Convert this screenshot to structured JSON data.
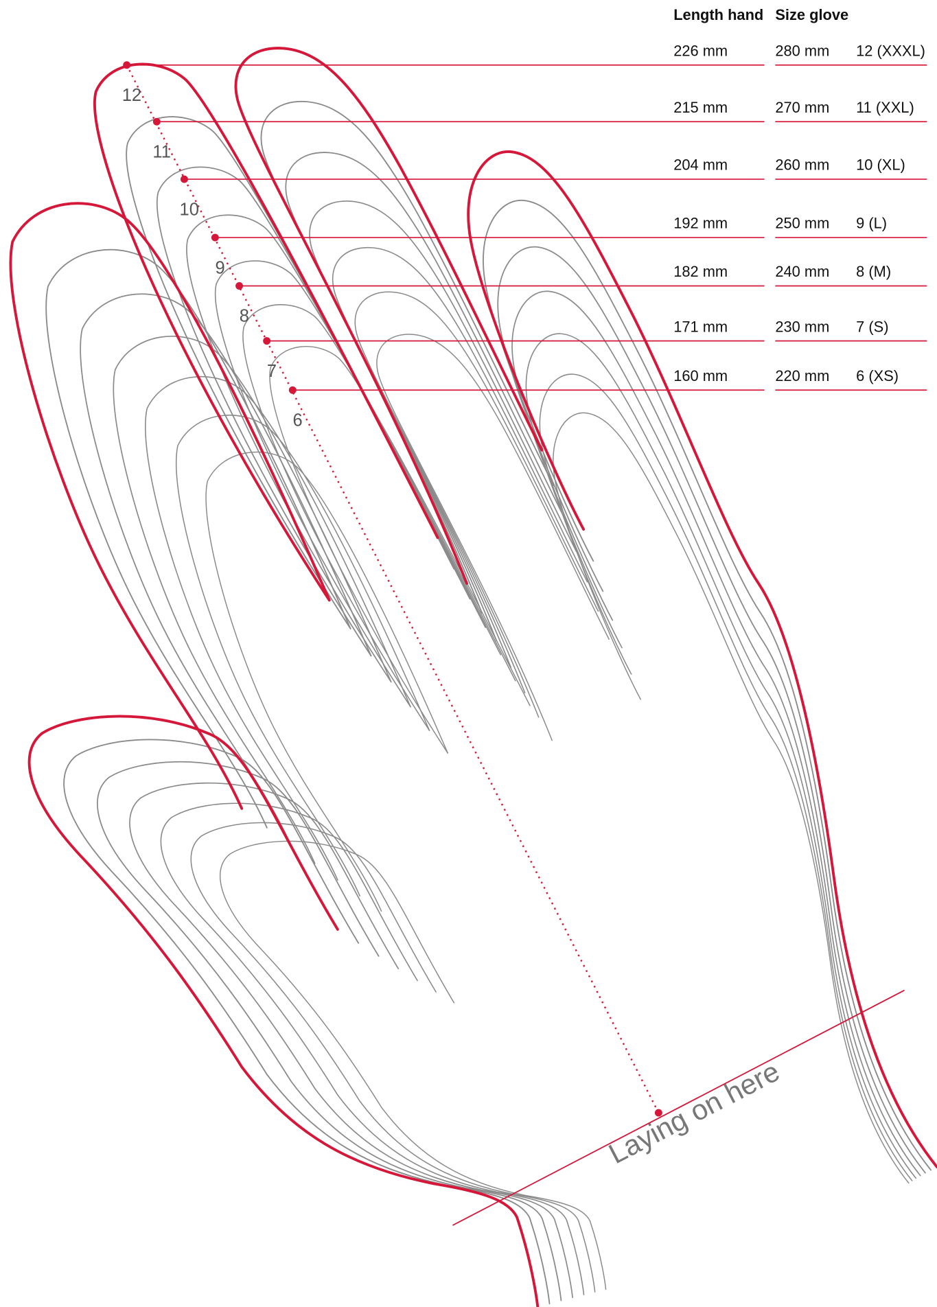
{
  "header": {
    "length_hand": "Length hand",
    "size_glove": "Size glove"
  },
  "rows": [
    {
      "marker": "12",
      "length_hand": "226 mm",
      "glove_length": "280 mm",
      "size": "12 (XXXL)"
    },
    {
      "marker": "11",
      "length_hand": "215 mm",
      "glove_length": "270 mm",
      "size": "11 (XXL)"
    },
    {
      "marker": "10",
      "length_hand": "204 mm",
      "glove_length": "260 mm",
      "size": "10 (XL)"
    },
    {
      "marker": "9",
      "length_hand": "192 mm",
      "glove_length": "250 mm",
      "size": "9 (L)"
    },
    {
      "marker": "8",
      "length_hand": "182 mm",
      "glove_length": "240 mm",
      "size": "8 (M)"
    },
    {
      "marker": "7",
      "length_hand": "171 mm",
      "glove_length": "230 mm",
      "size": "7 (S)"
    },
    {
      "marker": "6",
      "length_hand": "160 mm",
      "glove_length": "220 mm",
      "size": "6 (XS)"
    }
  ],
  "wrist_label": "Laying on here"
}
